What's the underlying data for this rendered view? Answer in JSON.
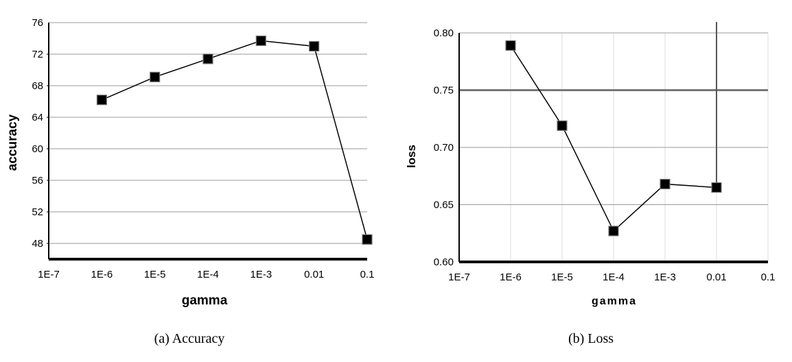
{
  "chart_data": [
    {
      "type": "line",
      "caption": "(a) Accuracy",
      "xlabel": "gamma",
      "ylabel": "accuracy",
      "x_scale": "log",
      "x_ticks": [
        "1E-7",
        "1E-6",
        "1E-5",
        "1E-4",
        "1E-3",
        "0.01",
        "0.1"
      ],
      "x_tick_values": [
        1e-07,
        1e-06,
        1e-05,
        0.0001,
        0.001,
        0.01,
        0.1
      ],
      "y_ticks": [
        "48",
        "52",
        "56",
        "60",
        "64",
        "68",
        "72",
        "76"
      ],
      "ylim": [
        46,
        76
      ],
      "xlim": [
        1e-07,
        0.1
      ],
      "grid": "horizontal",
      "series": [
        {
          "x": [
            1e-06,
            1e-05,
            0.0001,
            0.001,
            0.01,
            0.1
          ],
          "y": [
            66.2,
            69.1,
            71.4,
            73.7,
            73.0,
            48.5
          ]
        }
      ],
      "marker": "square",
      "colors": {
        "line": "#000000",
        "grid": "#999999"
      }
    },
    {
      "type": "line",
      "caption": "(b) Loss",
      "xlabel": "gamma",
      "ylabel": "loss",
      "x_scale": "log",
      "x_ticks": [
        "1E-7",
        "1E-6",
        "1E-5",
        "1E-4",
        "1E-3",
        "0.01",
        "0.1"
      ],
      "x_tick_values": [
        1e-07,
        1e-06,
        1e-05,
        0.0001,
        0.001,
        0.01,
        0.1
      ],
      "y_ticks": [
        "0.60",
        "0.65",
        "0.70",
        "0.75",
        "0.80"
      ],
      "ylim": [
        0.6,
        0.8
      ],
      "xlim": [
        1e-07,
        0.1
      ],
      "grid": "both",
      "series": [
        {
          "x": [
            1e-06,
            1e-05,
            0.0001,
            0.001,
            0.01
          ],
          "y": [
            0.789,
            0.719,
            0.627,
            0.668,
            0.665
          ]
        }
      ],
      "marker": "square",
      "colors": {
        "line": "#000000",
        "grid": "#999999",
        "vgrid": "#dddddd"
      }
    }
  ]
}
